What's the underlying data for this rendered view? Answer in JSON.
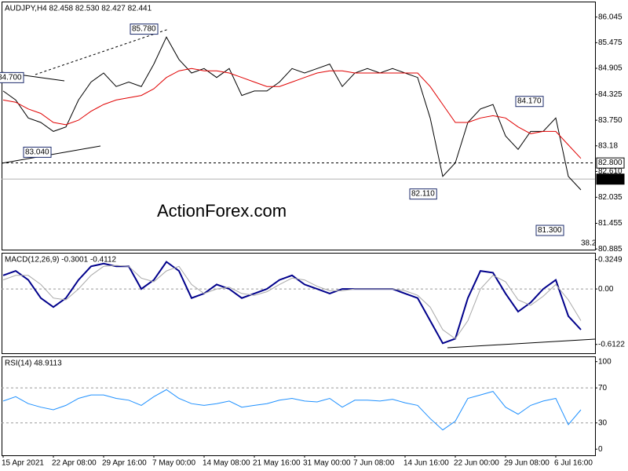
{
  "chart_data": [
    {
      "type": "line",
      "title": "AUDJPY,H4  82.458 82.530 82.427 82.441",
      "watermark": "ActionForex.com",
      "ylim": [
        80.87,
        86.39
      ],
      "yticks": [
        86.045,
        85.475,
        84.905,
        84.325,
        {
          "value": 83.75,
          "label": "83.750"
        },
        83.18,
        {
          "value": 82.61,
          "label": "82.610"
        },
        82.035,
        81.455,
        80.885
      ],
      "series": [
        {
          "color": "#000000",
          "values": [
            84.4,
            84.2,
            83.8,
            83.7,
            83.5,
            83.6,
            84.2,
            84.6,
            84.8,
            84.5,
            84.6,
            84.5,
            85.0,
            85.6,
            85.1,
            84.8,
            84.9,
            84.7,
            84.9,
            84.3,
            84.4,
            84.4,
            84.6,
            84.9,
            84.8,
            84.9,
            85.0,
            84.5,
            84.8,
            84.9,
            84.8,
            84.9,
            84.8,
            84.7,
            83.8,
            82.5,
            82.8,
            83.7,
            84.0,
            84.1,
            83.4,
            83.1,
            83.5,
            83.5,
            83.8,
            82.5,
            82.2
          ]
        },
        {
          "color": "#e00000",
          "values": [
            84.2,
            84.15,
            84.0,
            83.9,
            83.7,
            83.65,
            83.75,
            83.95,
            84.1,
            84.2,
            84.25,
            84.3,
            84.45,
            84.7,
            84.85,
            84.9,
            84.85,
            84.85,
            84.8,
            84.7,
            84.6,
            84.5,
            84.5,
            84.6,
            84.7,
            84.8,
            84.85,
            84.85,
            84.8,
            84.8,
            84.8,
            84.8,
            84.8,
            84.8,
            84.5,
            84.1,
            83.7,
            83.7,
            83.8,
            83.85,
            83.8,
            83.6,
            83.45,
            83.5,
            83.5,
            83.2,
            82.9
          ]
        }
      ],
      "annotations": [
        {
          "value": 85.78,
          "label": "85.780"
        },
        {
          "value": 84.7,
          "label": "84.700"
        },
        {
          "value": 83.04,
          "label": "83.040"
        },
        {
          "value": 82.11,
          "label": "82.110"
        },
        {
          "value": 84.17,
          "label": "84.170"
        },
        {
          "value": 81.3,
          "label": "81.300"
        }
      ],
      "hline": {
        "value": 82.8,
        "label": "82.800"
      },
      "last_price": 82.441,
      "fib_label": "38.2"
    },
    {
      "type": "line",
      "title": "MACD(12,26,9) -0.3001 -0.4112",
      "ylim": [
        -0.71,
        0.4
      ],
      "yticks": [
        0.3249,
        {
          "value": 0,
          "label": "0.00"
        },
        -0.6122
      ],
      "levels": [
        0
      ],
      "series": [
        {
          "color": "#00008b",
          "values": [
            0.15,
            0.2,
            0.1,
            -0.1,
            -0.2,
            -0.1,
            0.1,
            0.25,
            0.28,
            0.25,
            0.25,
            0.0,
            0.1,
            0.3,
            0.2,
            -0.1,
            -0.05,
            0.05,
            0.0,
            -0.1,
            -0.05,
            0.0,
            0.1,
            0.15,
            0.05,
            0.0,
            -0.05,
            0.0,
            0.0,
            0.0,
            0.0,
            0.0,
            -0.05,
            -0.1,
            -0.35,
            -0.6,
            -0.55,
            -0.1,
            0.2,
            0.18,
            -0.05,
            -0.25,
            -0.15,
            0.0,
            0.1,
            -0.3,
            -0.45
          ]
        },
        {
          "color": "#a9a9a9",
          "values": [
            0.1,
            0.15,
            0.15,
            0.05,
            -0.1,
            -0.12,
            0.0,
            0.15,
            0.25,
            0.26,
            0.25,
            0.12,
            0.08,
            0.2,
            0.25,
            0.05,
            -0.05,
            0.0,
            0.02,
            -0.05,
            -0.07,
            -0.03,
            0.05,
            0.12,
            0.1,
            0.03,
            -0.02,
            -0.02,
            0.0,
            0.0,
            0.0,
            0.0,
            -0.02,
            -0.07,
            -0.2,
            -0.45,
            -0.55,
            -0.35,
            0.0,
            0.15,
            0.08,
            -0.12,
            -0.18,
            -0.08,
            0.05,
            -0.12,
            -0.35
          ]
        }
      ]
    },
    {
      "type": "line",
      "title": "RSI(14) 48.9113",
      "ylim": [
        -7,
        106
      ],
      "yticks": [
        100,
        70,
        30,
        0
      ],
      "levels": [
        70,
        30
      ],
      "series": [
        {
          "color": "#1e90ff",
          "values": [
            55,
            60,
            52,
            48,
            45,
            50,
            58,
            62,
            62,
            58,
            56,
            50,
            60,
            68,
            58,
            52,
            50,
            52,
            55,
            48,
            50,
            52,
            56,
            58,
            55,
            54,
            58,
            48,
            56,
            56,
            55,
            57,
            53,
            50,
            35,
            22,
            32,
            58,
            62,
            66,
            48,
            40,
            50,
            55,
            58,
            28,
            45
          ]
        }
      ],
      "categories": [
        "15 Apr 2021",
        null,
        null,
        null,
        "22 Apr 08:00",
        null,
        null,
        null,
        "29 Apr 16:00",
        null,
        null,
        null,
        "7 May 00:00",
        null,
        null,
        null,
        "14 May 08:00",
        null,
        null,
        null,
        "21 May 16:00",
        null,
        null,
        null,
        "31 May 00:00",
        null,
        null,
        null,
        "7 Jun 08:00",
        null,
        null,
        null,
        "14 Jun 16:00",
        null,
        null,
        null,
        "22 Jun 00:00",
        null,
        null,
        null,
        "29 Jun 08:00",
        null,
        null,
        null,
        "6 Jul 16:00",
        null,
        null
      ]
    }
  ]
}
